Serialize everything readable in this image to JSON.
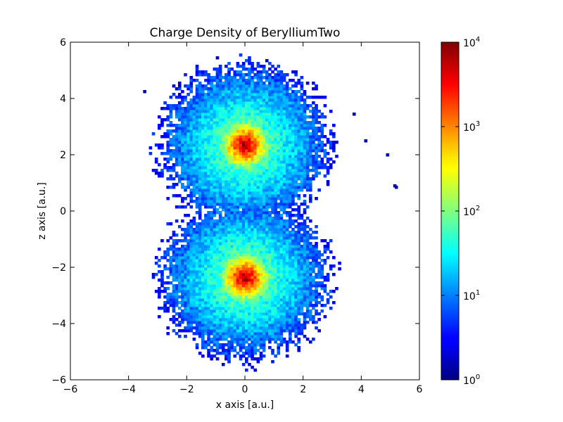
{
  "chart_data": {
    "type": "heatmap",
    "title": "Charge Density of BerylliumTwo",
    "xlabel": "x axis [a.u.]",
    "ylabel": "z axis [a.u.]",
    "xlim": [
      -6,
      6
    ],
    "ylim": [
      -6,
      6
    ],
    "x_ticks": [
      "−6",
      "−4",
      "−2",
      "0",
      "2",
      "4",
      "6"
    ],
    "y_ticks": [
      "−6",
      "−4",
      "−2",
      "0",
      "2",
      "4",
      "6"
    ],
    "x_tick_values": [
      -6,
      -4,
      -2,
      0,
      2,
      4,
      6
    ],
    "y_tick_values": [
      -6,
      -4,
      -2,
      0,
      2,
      4,
      6
    ],
    "colormap": "jet",
    "color_scale": "log",
    "color_range": [
      1,
      10000
    ],
    "colorbar_ticks": [
      {
        "base": "10",
        "exp": "0",
        "value": 1
      },
      {
        "base": "10",
        "exp": "1",
        "value": 10
      },
      {
        "base": "10",
        "exp": "2",
        "value": 100
      },
      {
        "base": "10",
        "exp": "3",
        "value": 1000
      },
      {
        "base": "10",
        "exp": "4",
        "value": 10000
      }
    ],
    "grid": false,
    "legend": "none",
    "bins": 120,
    "density_centers": [
      {
        "x": 0.0,
        "z": 2.35,
        "peak": 10000
      },
      {
        "x": 0.0,
        "z": -2.35,
        "peak": 10000
      }
    ],
    "cloud_radius": 2.8,
    "isolated_cells": [
      {
        "x": 5.1,
        "z": 0.95
      },
      {
        "x": 5.15,
        "z": 0.9
      },
      {
        "x": 4.85,
        "z": 2.05
      },
      {
        "x": 4.1,
        "z": 2.55
      },
      {
        "x": 3.7,
        "z": 3.5
      },
      {
        "x": -3.5,
        "z": 4.3
      }
    ]
  }
}
